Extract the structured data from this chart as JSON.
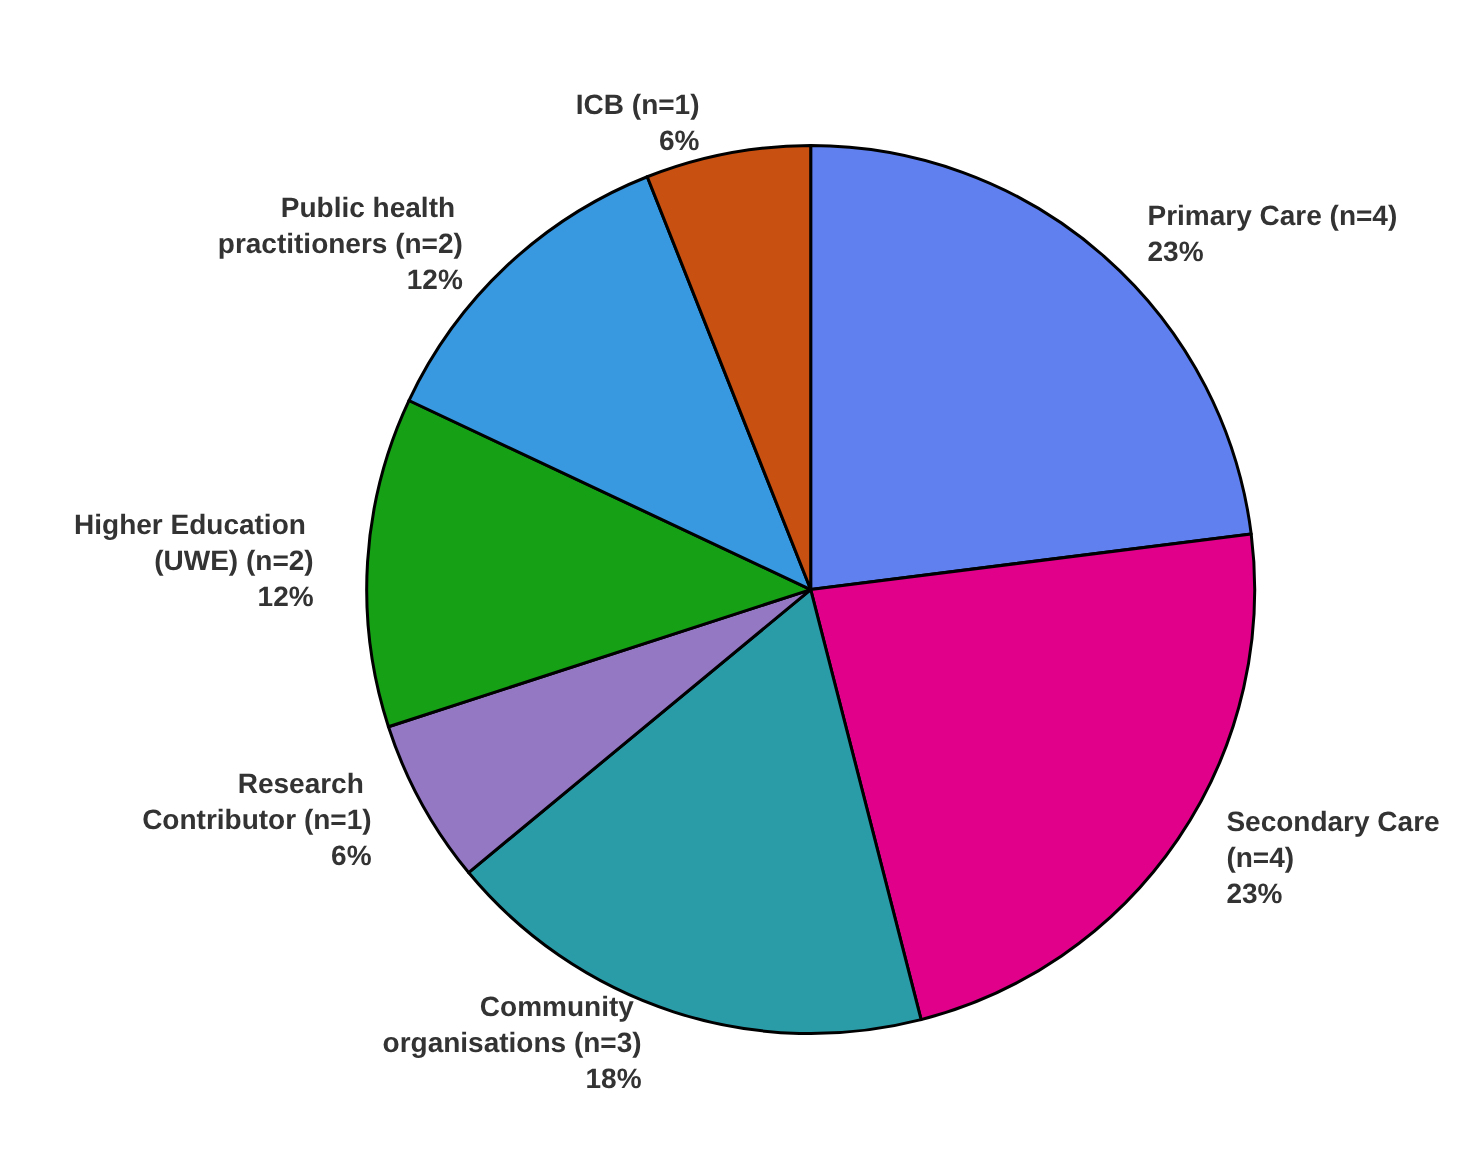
{
  "chart_data": {
    "type": "pie",
    "categories": [
      "Primary Care (n=4)",
      "Secondary Care (n=4)",
      "Community organisations (n=3)",
      "Research Contributor (n=1)",
      "Higher Education (UWE) (n=2)",
      "Public health practitioners (n=2)",
      "ICB (n=1)"
    ],
    "values": [
      23,
      23,
      18,
      6,
      12,
      12,
      6
    ],
    "value_labels": [
      "23%",
      "23%",
      "18%",
      "6%",
      "12%",
      "12%",
      "6%"
    ],
    "colors": [
      "#6080f0",
      "#e0008a",
      "#2a9ca8",
      "#9478c4",
      "#16a016",
      "#3898e0",
      "#c85010"
    ],
    "legend": false
  }
}
